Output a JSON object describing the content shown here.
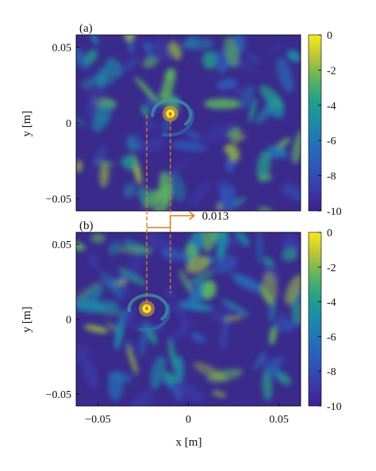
{
  "chart_data": [
    {
      "panel_label": "(a)",
      "type": "heatmap",
      "ylabel": "y [m]",
      "xlim": [
        -0.062,
        0.062
      ],
      "ylim": [
        -0.058,
        0.058
      ],
      "y_ticks": [
        {
          "value": 0.05,
          "label": "0.05"
        },
        {
          "value": 0,
          "label": "0"
        },
        {
          "value": -0.05,
          "label": "−0.05"
        }
      ],
      "colorbar": {
        "range": [
          -10,
          0
        ],
        "ticks": [
          {
            "value": 0,
            "label": "0"
          },
          {
            "value": -2,
            "label": "-2"
          },
          {
            "value": -4,
            "label": "-4"
          },
          {
            "value": -6,
            "label": "-6"
          },
          {
            "value": -8,
            "label": "-8"
          },
          {
            "value": -10,
            "label": "-10"
          }
        ]
      },
      "peak": {
        "x": -0.01,
        "y": 0.006,
        "value": 0
      }
    },
    {
      "panel_label": "(b)",
      "type": "heatmap",
      "xlabel": "x [m]",
      "ylabel": "y [m]",
      "xlim": [
        -0.062,
        0.062
      ],
      "ylim": [
        -0.058,
        0.058
      ],
      "x_ticks": [
        {
          "value": -0.05,
          "label": "−0.05"
        },
        {
          "value": 0,
          "label": "0"
        },
        {
          "value": 0.05,
          "label": "0.05"
        }
      ],
      "y_ticks": [
        {
          "value": 0.05,
          "label": "0.05"
        },
        {
          "value": 0,
          "label": "0"
        },
        {
          "value": -0.05,
          "label": "−0.05"
        }
      ],
      "colorbar": {
        "range": [
          -10,
          0
        ],
        "ticks": [
          {
            "value": 0,
            "label": "0"
          },
          {
            "value": -2,
            "label": "-2"
          },
          {
            "value": -4,
            "label": "-4"
          },
          {
            "value": -6,
            "label": "-6"
          },
          {
            "value": -8,
            "label": "-8"
          },
          {
            "value": -10,
            "label": "-10"
          }
        ]
      },
      "peak": {
        "x": -0.023,
        "y": 0.007,
        "value": 0
      }
    }
  ],
  "annotation": {
    "text": "0.013",
    "color": "#e07b1f"
  }
}
